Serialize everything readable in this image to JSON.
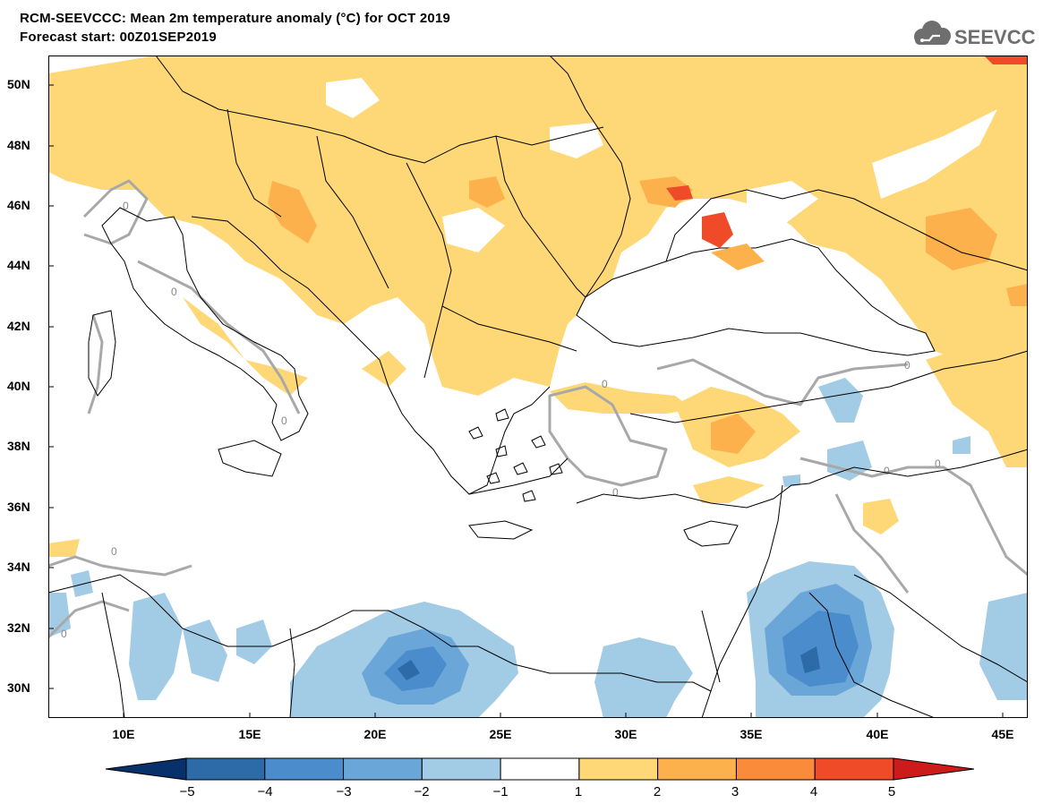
{
  "header": {
    "title": "RCM-SEEVCCC: Mean 2m temperature anomaly (°C) for OCT 2019",
    "subtitle": "Forecast start: 00Z01SEP2019",
    "logo_text": "SEEVCCC"
  },
  "map": {
    "projection": "lat-lon",
    "lon_range": [
      7,
      46
    ],
    "lat_range": [
      29,
      51
    ],
    "lat_labels": [
      "50N",
      "48N",
      "46N",
      "44N",
      "42N",
      "40N",
      "38N",
      "36N",
      "34N",
      "32N",
      "30N"
    ],
    "lon_labels": [
      "10E",
      "15E",
      "20E",
      "25E",
      "30E",
      "35E",
      "40E",
      "45E"
    ],
    "contour_label": "0",
    "ocean_color": "#ffffff",
    "border_color": "#000000",
    "zero_contour_color": "#a8a8a8"
  },
  "colorbar": {
    "labels": [
      "−5",
      "−4",
      "−3",
      "−2",
      "−1",
      "1",
      "2",
      "3",
      "4",
      "5"
    ],
    "bins": [
      {
        "range": "< -5",
        "color": "#08306b"
      },
      {
        "range": "-5 to -4",
        "color": "#2c6aa8"
      },
      {
        "range": "-4 to -3",
        "color": "#4a8ccc"
      },
      {
        "range": "-3 to -2",
        "color": "#6aa6d8"
      },
      {
        "range": "-2 to -1",
        "color": "#a2cbe5"
      },
      {
        "range": "-1 to 1",
        "color": "#ffffff"
      },
      {
        "range": "1 to 2",
        "color": "#fed776"
      },
      {
        "range": "2 to 3",
        "color": "#fcb14c"
      },
      {
        "range": "3 to 4",
        "color": "#fa8b3b"
      },
      {
        "range": "4 to 5",
        "color": "#f04b28"
      },
      {
        "range": "> 5",
        "color": "#cd1b1c"
      }
    ]
  }
}
